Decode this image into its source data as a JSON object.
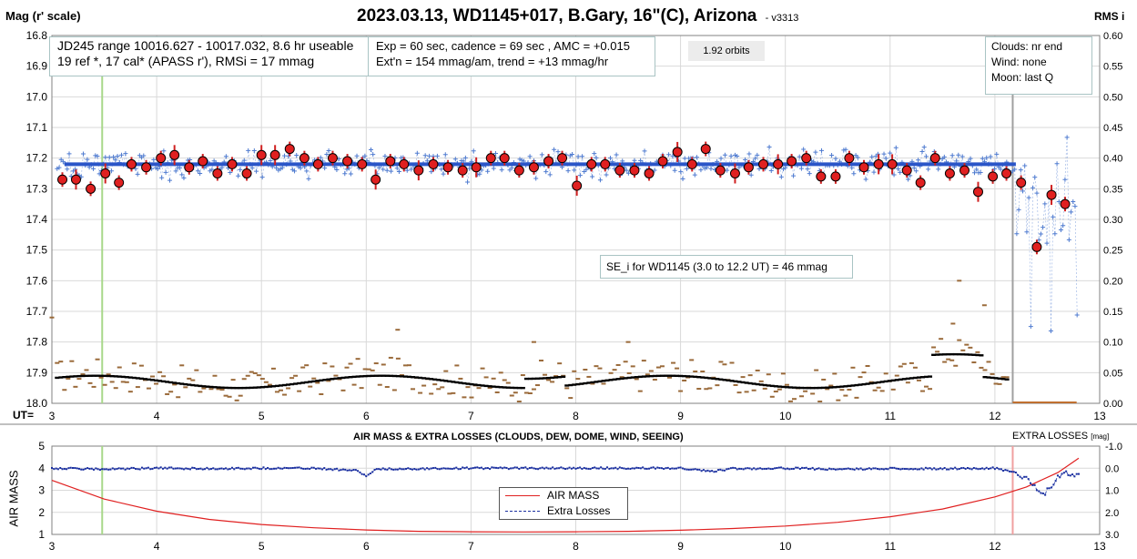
{
  "title": "2023.03.13, WD1145+017, B.Gary, 16\"(C), Arizona",
  "version": "- v3313",
  "top_left_label": "Mag (r' scale)",
  "top_right_label": "RMS i",
  "ut_label": "UT=",
  "info_boxes": {
    "range_line1": "JD245 range 10016.627 - 10017.032, 8.6 hr useable",
    "range_line2": "19 ref *, 17 cal*  (APASS r'), RMSi = 17 mmag",
    "exp_line1": "Exp = 60 sec, cadence = 69 sec , AMC = +0.015",
    "exp_line2": "Ext'n = 154 mmag/am, trend = +13 mmag/hr",
    "orbits": "1.92 orbits",
    "clouds": "Clouds: nr end",
    "wind": "Wind:    none",
    "moon": "Moon:    last Q",
    "se_note": "SE_i for WD1145 (3.0 to 12.2 UT) = 46 mmag"
  },
  "lower_panel": {
    "title": "AIR MASS & EXTRA LOSSES (CLOUDS, DEW, DOME, WIND, SEEING)",
    "right_title": "EXTRA LOSSES",
    "right_unit": "[mag]",
    "ylabel": "AIR MASS",
    "legend_airmass": "AIR MASS",
    "legend_losses": "Extra Losses"
  },
  "colors": {
    "raw_points": "#4f7bd0",
    "binned_fill": "#e02020",
    "model_line": "#2a55c8",
    "rms": "#9a6a3a",
    "rms_avg": "#000000",
    "green_marker": "#a8d88a",
    "airmass": "#e02020",
    "losses": "#1a2fa0",
    "gridline": "#d9d9d9"
  },
  "chart_data": [
    {
      "type": "scatter",
      "title": "2023.03.13, WD1145+017, B.Gary, 16\"(C), Arizona",
      "xlabel": "UT=",
      "ylabel": "Mag (r' scale)",
      "y2label": "RMS i",
      "xlim": [
        3,
        13
      ],
      "ylim": [
        18.0,
        16.8
      ],
      "y2lim": [
        0.0,
        0.6
      ],
      "xticks": [
        3,
        4,
        5,
        6,
        7,
        8,
        9,
        10,
        11,
        12,
        13
      ],
      "yticks": [
        16.8,
        16.9,
        17.0,
        17.1,
        17.2,
        17.3,
        17.4,
        17.5,
        17.6,
        17.7,
        17.8,
        17.9,
        18.0
      ],
      "y2ticks": [
        0.0,
        0.05,
        0.1,
        0.15,
        0.2,
        0.25,
        0.3,
        0.35,
        0.4,
        0.45,
        0.5,
        0.55,
        0.6
      ],
      "grid": true,
      "model_level": 17.22,
      "model_range": [
        3.12,
        12.2
      ],
      "vertical_markers": [
        3.48,
        12.17
      ],
      "binned": {
        "x": [
          3.1,
          3.23,
          3.37,
          3.51,
          3.64,
          3.76,
          3.9,
          4.04,
          4.17,
          4.31,
          4.44,
          4.58,
          4.72,
          4.86,
          5.0,
          5.13,
          5.27,
          5.41,
          5.54,
          5.68,
          5.82,
          5.96,
          6.09,
          6.23,
          6.36,
          6.5,
          6.64,
          6.78,
          6.92,
          7.05,
          7.19,
          7.32,
          7.46,
          7.6,
          7.74,
          7.87,
          8.01,
          8.15,
          8.28,
          8.42,
          8.56,
          8.7,
          8.83,
          8.97,
          9.11,
          9.24,
          9.38,
          9.52,
          9.65,
          9.79,
          9.93,
          10.06,
          10.2,
          10.34,
          10.48,
          10.61,
          10.75,
          10.89,
          11.02,
          11.16,
          11.29,
          11.43,
          11.57,
          11.71,
          11.84,
          11.98,
          12.11,
          12.25,
          12.4,
          12.54,
          12.67
        ],
        "values": [
          17.27,
          17.27,
          17.3,
          17.25,
          17.28,
          17.22,
          17.23,
          17.2,
          17.19,
          17.23,
          17.21,
          17.25,
          17.22,
          17.25,
          17.19,
          17.19,
          17.17,
          17.2,
          17.22,
          17.2,
          17.21,
          17.22,
          17.27,
          17.21,
          17.22,
          17.24,
          17.22,
          17.23,
          17.24,
          17.23,
          17.2,
          17.2,
          17.24,
          17.23,
          17.21,
          17.2,
          17.29,
          17.22,
          17.22,
          17.24,
          17.24,
          17.25,
          17.21,
          17.18,
          17.22,
          17.17,
          17.24,
          17.25,
          17.23,
          17.22,
          17.22,
          17.21,
          17.2,
          17.26,
          17.26,
          17.2,
          17.23,
          17.22,
          17.22,
          17.24,
          17.28,
          17.2,
          17.25,
          17.24,
          17.31,
          17.26,
          17.25,
          17.28,
          17.49,
          17.32,
          17.35
        ]
      },
      "model_series": {
        "name": "",
        "values": [
          17.22
        ]
      }
    },
    {
      "type": "line",
      "title": "AIR MASS & EXTRA LOSSES (CLOUDS, DEW, DOME, WIND, SEEING)",
      "xlabel": "",
      "ylabel": "AIR MASS",
      "y2label": "EXTRA LOSSES [mag]",
      "xlim": [
        3,
        13
      ],
      "ylim": [
        1,
        5
      ],
      "y2lim": [
        -1.0,
        3.0
      ],
      "y2_inverted": true,
      "xticks": [
        3,
        4,
        5,
        6,
        7,
        8,
        9,
        10,
        11,
        12,
        13
      ],
      "yticks": [
        1,
        2,
        3,
        4,
        5
      ],
      "y2ticks": [
        "-1.0",
        "0.0",
        "1.0",
        "2.0",
        "3.0"
      ],
      "grid": true,
      "legend": "center",
      "series": [
        {
          "name": "AIR MASS",
          "x": [
            3.0,
            3.5,
            4.0,
            4.5,
            5.0,
            5.5,
            6.0,
            6.5,
            7.0,
            7.5,
            8.0,
            8.5,
            9.0,
            9.5,
            10.0,
            10.5,
            11.0,
            11.5,
            12.0,
            12.3,
            12.6,
            12.8
          ],
          "values": [
            3.45,
            2.6,
            2.05,
            1.68,
            1.45,
            1.3,
            1.2,
            1.14,
            1.12,
            1.11,
            1.12,
            1.14,
            1.19,
            1.27,
            1.38,
            1.55,
            1.8,
            2.15,
            2.7,
            3.15,
            3.8,
            4.45
          ]
        },
        {
          "name": "Extra Losses",
          "x": [
            3.0,
            3.5,
            4.0,
            4.5,
            5.0,
            5.5,
            5.9,
            6.0,
            6.1,
            6.5,
            7.0,
            7.5,
            8.0,
            8.5,
            9.0,
            9.3,
            9.5,
            10.0,
            10.5,
            11.0,
            11.5,
            12.0,
            12.2,
            12.35,
            12.45,
            12.55,
            12.65,
            12.8
          ],
          "values": [
            0.0,
            0.05,
            0.0,
            0.02,
            0.0,
            0.0,
            0.1,
            0.35,
            0.05,
            0.02,
            0.0,
            0.0,
            0.0,
            0.0,
            0.0,
            0.15,
            0.02,
            0.0,
            0.05,
            0.02,
            0.02,
            0.0,
            0.2,
            0.6,
            1.3,
            0.7,
            0.2,
            0.35
          ]
        }
      ]
    }
  ]
}
